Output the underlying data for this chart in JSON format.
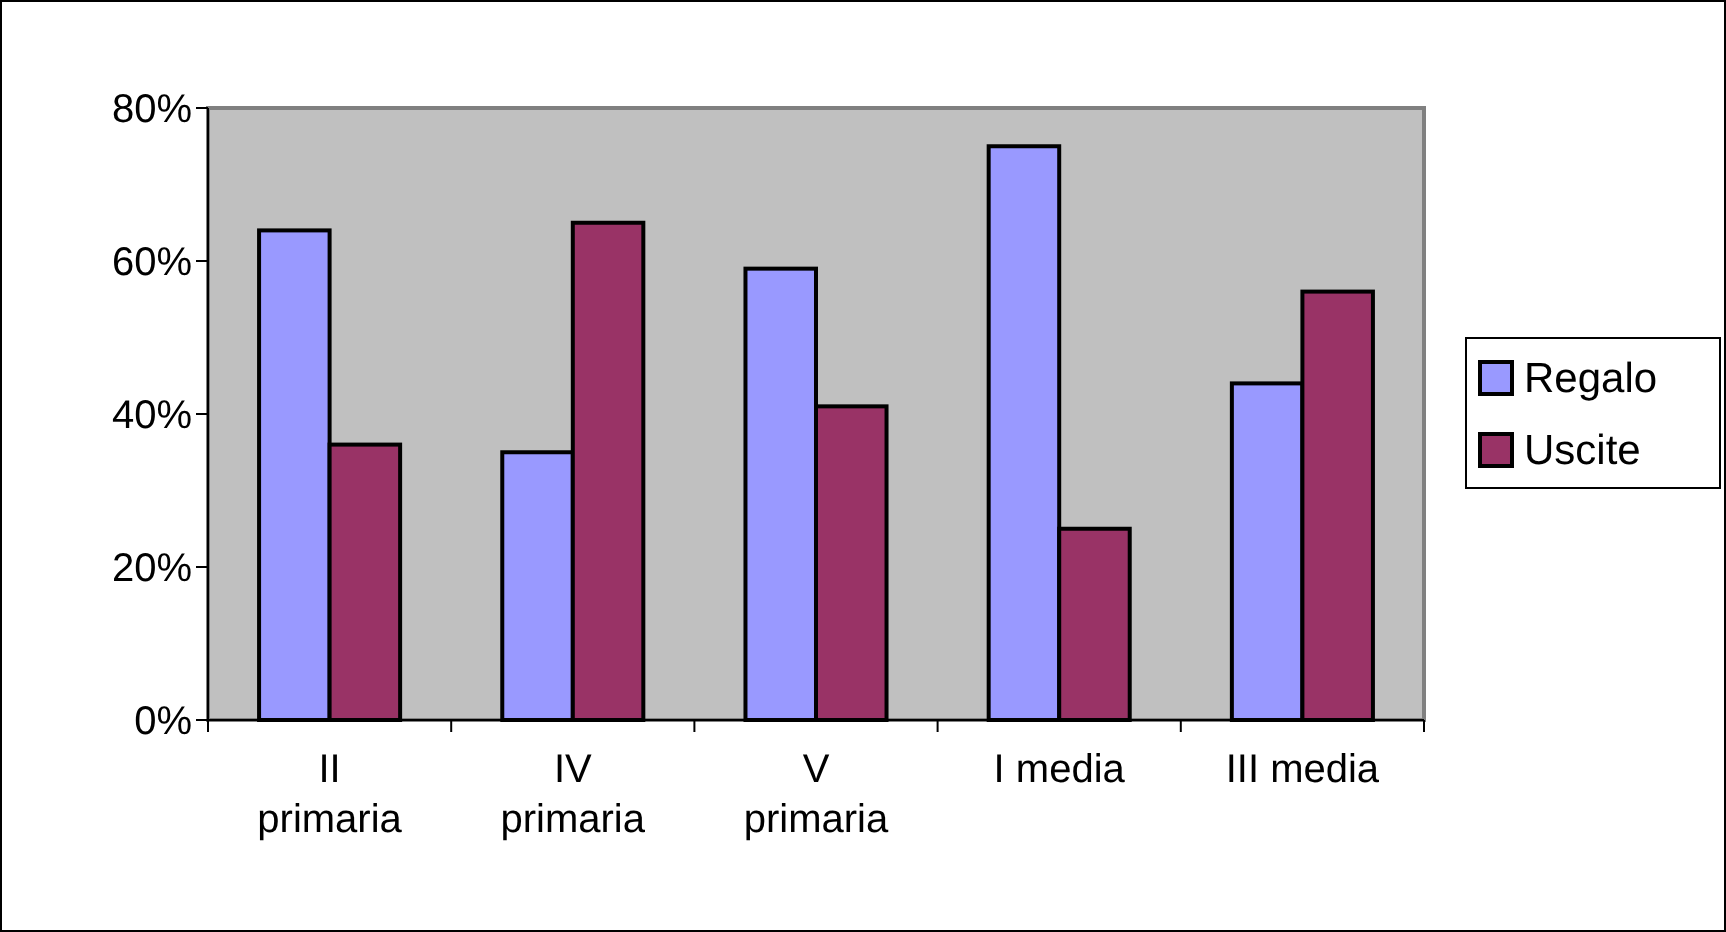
{
  "chart_data": {
    "type": "bar",
    "categories": [
      "II primaria",
      "IV primaria",
      "V primaria",
      "I media",
      "III media"
    ],
    "series": [
      {
        "name": "Regalo",
        "color": "#9999ff",
        "values": [
          64,
          35,
          59,
          75,
          44
        ]
      },
      {
        "name": "Uscite",
        "color": "#993366",
        "values": [
          36,
          65,
          41,
          25,
          56
        ]
      }
    ],
    "ylim": [
      0,
      80
    ],
    "yticks": [
      {
        "value": 0,
        "label": "0%"
      },
      {
        "value": 20,
        "label": "20%"
      },
      {
        "value": 40,
        "label": "40%"
      },
      {
        "value": 60,
        "label": "60%"
      },
      {
        "value": 80,
        "label": "80%"
      }
    ],
    "grid": false,
    "legend": "right"
  }
}
